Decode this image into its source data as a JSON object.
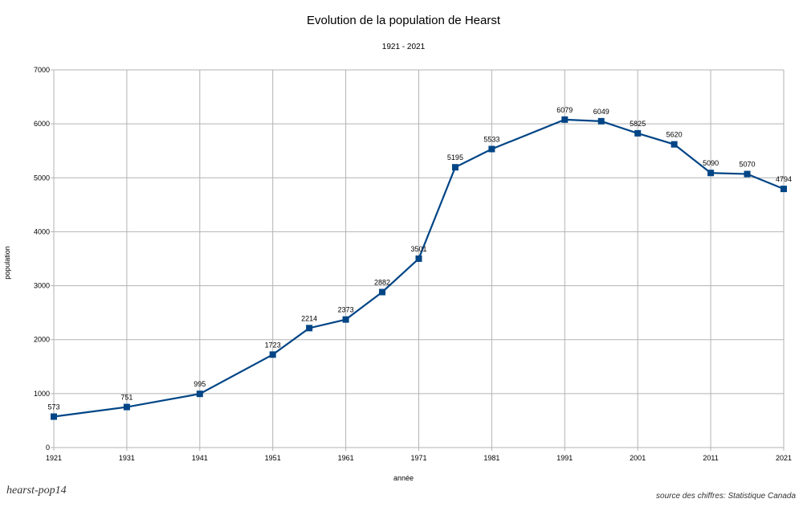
{
  "chart_data": {
    "type": "line",
    "title": "Evolution de la population de Hearst",
    "subtitle": "1921 - 2021",
    "xlabel": "année",
    "ylabel": "population",
    "x": [
      1921,
      1931,
      1941,
      1951,
      1956,
      1961,
      1966,
      1971,
      1976,
      1981,
      1991,
      1996,
      2001,
      2006,
      2011,
      2016,
      2021
    ],
    "series": [
      {
        "name": "population",
        "values": [
          573,
          751,
          995,
          1723,
          2214,
          2373,
          2882,
          3501,
          5195,
          5533,
          6079,
          6049,
          5825,
          5620,
          5090,
          5070,
          4794
        ],
        "color": "#004586"
      }
    ],
    "xlim": [
      1921,
      2021
    ],
    "ylim": [
      0,
      7000
    ],
    "xticks": [
      "1921",
      "1931",
      "1941",
      "1951",
      "1961",
      "1971",
      "1981",
      "1991",
      "2001",
      "2011",
      "2021"
    ],
    "yticks": [
      "0",
      "1000",
      "2000",
      "3000",
      "4000",
      "5000",
      "6000",
      "7000"
    ],
    "grid": true,
    "legend": "none"
  },
  "footer": {
    "tag": "hearst-pop14",
    "source": "source des chiffres: Statistique Canada"
  }
}
